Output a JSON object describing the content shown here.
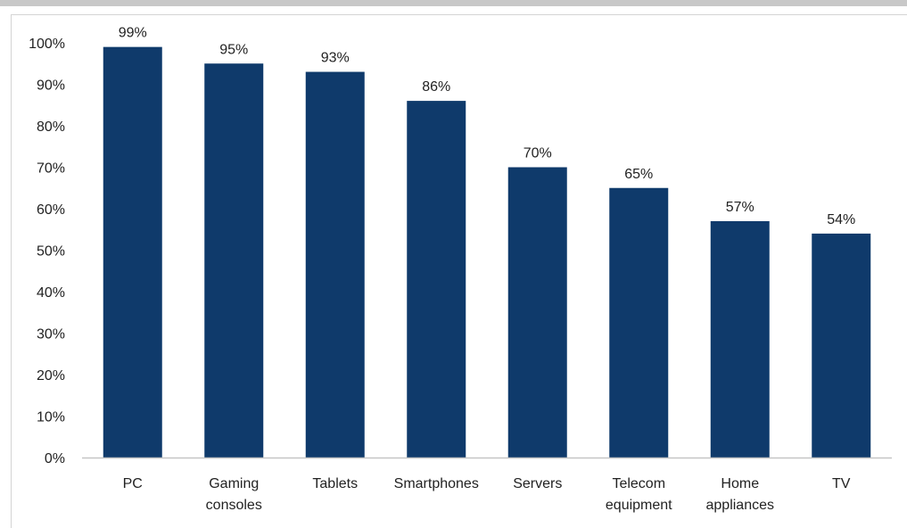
{
  "chart_data": {
    "type": "bar",
    "categories": [
      "PC",
      "Gaming consoles",
      "Tablets",
      "Smartphones",
      "Servers",
      "Telecom equipment",
      "Home appliances",
      "TV"
    ],
    "category_lines": [
      [
        "PC"
      ],
      [
        "Gaming",
        "consoles"
      ],
      [
        "Tablets"
      ],
      [
        "Smartphones"
      ],
      [
        "Servers"
      ],
      [
        "Telecom",
        "equipment"
      ],
      [
        "Home",
        "appliances"
      ],
      [
        "TV"
      ]
    ],
    "values": [
      99,
      95,
      93,
      86,
      70,
      65,
      57,
      54
    ],
    "data_labels": [
      "99%",
      "95%",
      "93%",
      "86%",
      "70%",
      "65%",
      "57%",
      "54%"
    ],
    "y_ticks": [
      0,
      10,
      20,
      30,
      40,
      50,
      60,
      70,
      80,
      90,
      100
    ],
    "y_tick_labels": [
      "0%",
      "10%",
      "20%",
      "30%",
      "40%",
      "50%",
      "60%",
      "70%",
      "80%",
      "90%",
      "100%"
    ],
    "ylim": [
      0,
      100
    ],
    "title": "",
    "xlabel": "",
    "ylabel": "",
    "grid": false,
    "legend": "none",
    "bar_color": "#0f3a6b",
    "axis_color": "#c6c6c6"
  }
}
